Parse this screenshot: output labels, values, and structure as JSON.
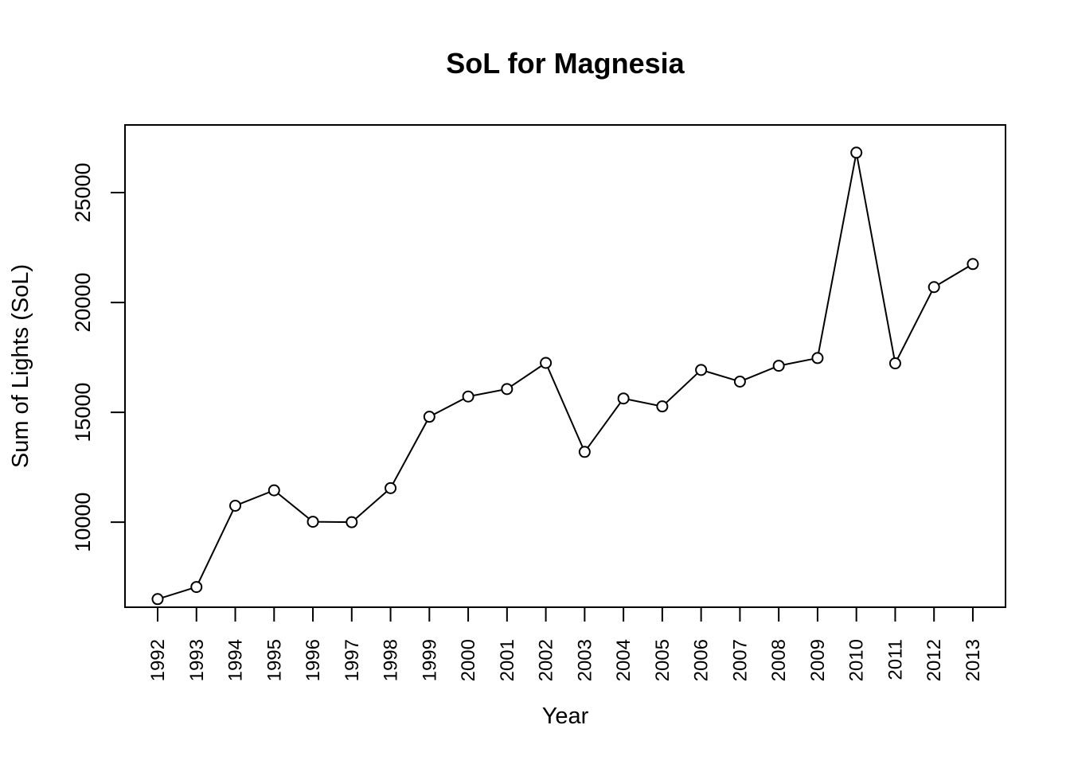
{
  "chart_data": {
    "type": "line",
    "title": "SoL for Magnesia",
    "xlabel": "Year",
    "ylabel": "Sum of Lights (SoL)",
    "categories": [
      "1992",
      "1993",
      "1994",
      "1995",
      "1996",
      "1997",
      "1998",
      "1999",
      "2000",
      "2001",
      "2002",
      "2003",
      "2004",
      "2005",
      "2006",
      "2007",
      "2008",
      "2009",
      "2010",
      "2011",
      "2012",
      "2013"
    ],
    "values": [
      6500,
      7050,
      10750,
      11450,
      10020,
      10000,
      11550,
      14800,
      15720,
      16060,
      17250,
      13200,
      15630,
      15270,
      16930,
      16400,
      17120,
      17470,
      26820,
      17230,
      20700,
      21750
    ],
    "yticks": [
      10000,
      15000,
      20000,
      25000
    ],
    "ytick_labels": [
      "10000",
      "15000",
      "20000",
      "25000"
    ],
    "ylim": [
      6130,
      28080
    ],
    "marker": "open-circle",
    "line_color": "#000000",
    "grid": false,
    "legend": false
  }
}
